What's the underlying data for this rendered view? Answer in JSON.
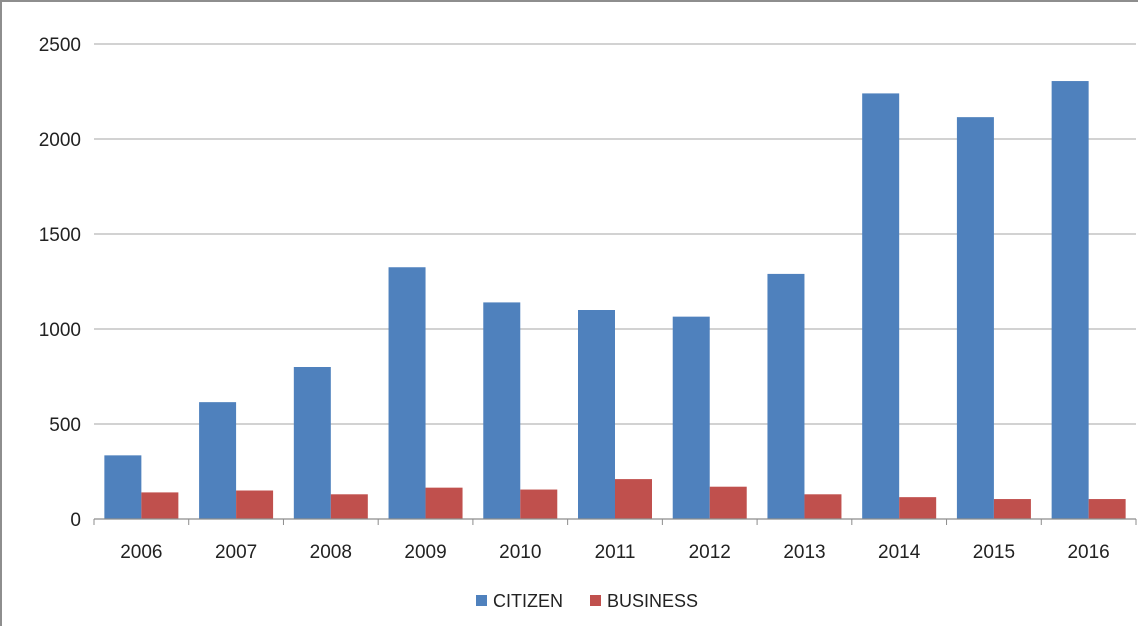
{
  "chart_data": {
    "type": "bar",
    "categories": [
      "2006",
      "2007",
      "2008",
      "2009",
      "2010",
      "2011",
      "2012",
      "2013",
      "2014",
      "2015",
      "2016"
    ],
    "series": [
      {
        "name": "CITIZEN",
        "color": "#4f81bd",
        "values": [
          335,
          615,
          800,
          1325,
          1140,
          1100,
          1065,
          1290,
          2240,
          2115,
          2305
        ]
      },
      {
        "name": "BUSINESS",
        "color": "#c0504d",
        "values": [
          140,
          150,
          130,
          165,
          155,
          210,
          170,
          130,
          115,
          105,
          105
        ]
      }
    ],
    "yticks": [
      "0",
      "500",
      "1000",
      "1500",
      "2000",
      "2500"
    ],
    "ylim": [
      0,
      2500
    ],
    "grid": true,
    "legend_position": "bottom"
  }
}
